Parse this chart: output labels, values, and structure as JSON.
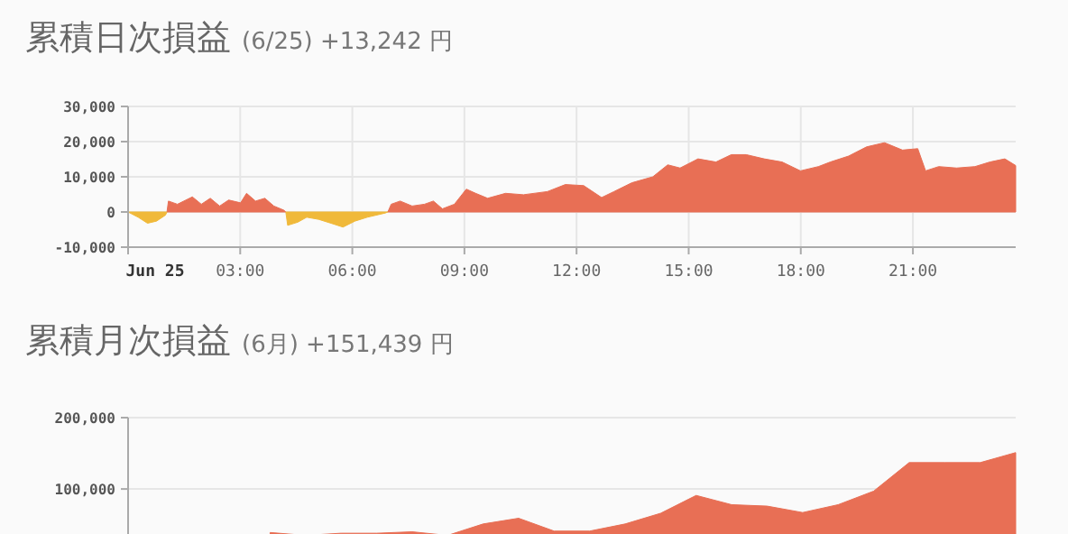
{
  "chart_data": [
    {
      "type": "area",
      "title": "累積日次損益",
      "subtitle": "(6/25) +13,242 円",
      "x": [
        0,
        0.27,
        0.52,
        0.76,
        1.0,
        1.04,
        1.08,
        1.32,
        1.72,
        1.96,
        2.2,
        2.45,
        2.69,
        3.01,
        3.17,
        3.41,
        3.66,
        3.9,
        4.17,
        4.22,
        4.27,
        4.54,
        4.78,
        5.1,
        5.43,
        5.75,
        6.07,
        6.4,
        6.88,
        6.95,
        7.04,
        7.28,
        7.6,
        7.93,
        8.17,
        8.41,
        8.73,
        9.05,
        9.3,
        9.62,
        10.1,
        10.58,
        11.22,
        11.7,
        12.19,
        12.67,
        13.0,
        13.48,
        14.04,
        14.44,
        14.77,
        15.25,
        15.73,
        16.14,
        16.54,
        17.02,
        17.5,
        17.99,
        18.47,
        18.79,
        19.28,
        19.76,
        20.24,
        20.72,
        21.13,
        21.34,
        21.69,
        22.17,
        22.66,
        23.06,
        23.46,
        23.75
      ],
      "series": [
        {
          "color": "#e86f55",
          "values": [
            null,
            null,
            null,
            null,
            null,
            0,
            3100,
            2200,
            4300,
            2200,
            3900,
            1700,
            3400,
            2600,
            5300,
            3100,
            3900,
            1700,
            500,
            0,
            null,
            null,
            null,
            null,
            null,
            null,
            null,
            null,
            null,
            0,
            2200,
            3100,
            1700,
            2200,
            3100,
            900,
            2200,
            6500,
            5300,
            3900,
            5300,
            4900,
            5800,
            7800,
            7500,
            4100,
            5800,
            8300,
            10000,
            13400,
            12500,
            15100,
            14200,
            16300,
            16300,
            15100,
            14200,
            11700,
            12900,
            14200,
            15900,
            18500,
            19700,
            17600,
            18000,
            11700,
            12900,
            12500,
            12900,
            14200,
            15100,
            13200
          ]
        },
        {
          "color": "#f0b93a",
          "values": [
            0,
            -1500,
            -3200,
            -2600,
            -900,
            0,
            null,
            null,
            null,
            null,
            null,
            null,
            null,
            null,
            null,
            null,
            null,
            null,
            null,
            0,
            -3800,
            -2900,
            -1500,
            -2100,
            -3200,
            -4300,
            -2600,
            -1500,
            -300,
            0,
            null,
            null,
            null,
            null,
            null,
            null,
            null,
            null,
            null,
            null,
            null,
            null,
            null,
            null,
            null,
            null,
            null,
            null,
            null,
            null,
            null,
            null,
            null,
            null,
            null,
            null,
            null,
            null,
            null,
            null,
            null,
            null,
            null,
            null,
            null,
            null,
            null,
            null,
            null,
            null,
            null,
            null
          ]
        }
      ],
      "xlim": [
        0,
        23.75
      ],
      "ylim": [
        -10000,
        30000
      ],
      "xticks": [
        {
          "value": 0,
          "label": "Jun 25"
        },
        {
          "value": 3,
          "label": "03:00"
        },
        {
          "value": 6,
          "label": "06:00"
        },
        {
          "value": 9,
          "label": "09:00"
        },
        {
          "value": 12,
          "label": "12:00"
        },
        {
          "value": 15,
          "label": "15:00"
        },
        {
          "value": 18,
          "label": "18:00"
        },
        {
          "value": 21,
          "label": "21:00"
        }
      ],
      "yticks": [
        {
          "value": -10000,
          "label": "-10,000"
        },
        {
          "value": 0,
          "label": "0"
        },
        {
          "value": 10000,
          "label": "10,000"
        },
        {
          "value": 20000,
          "label": "20,000"
        },
        {
          "value": 30000,
          "label": "30,000"
        }
      ],
      "grid": true
    },
    {
      "type": "area",
      "title": "累積月次損益",
      "subtitle": "(6月) +151,439 円",
      "categories": [
        null,
        null,
        null,
        null,
        null,
        null,
        null,
        null,
        null,
        null,
        null,
        null,
        null,
        null,
        null,
        null,
        null,
        null,
        null,
        null,
        null,
        null,
        null,
        null,
        null
      ],
      "series": [
        {
          "color": "#e86f55",
          "values": [
            null,
            null,
            null,
            39000,
            35000,
            38000,
            38000,
            40000,
            35000,
            51000,
            59000,
            41000,
            41000,
            51000,
            66000,
            91000,
            78000,
            76000,
            67000,
            78000,
            97000,
            137000,
            137000,
            137000,
            151000
          ]
        }
      ],
      "ylim": [
        0,
        200000
      ],
      "yticks": [
        {
          "value": 100000,
          "label": "100,000"
        },
        {
          "value": 200000,
          "label": "200,000"
        }
      ],
      "grid": "y"
    }
  ]
}
